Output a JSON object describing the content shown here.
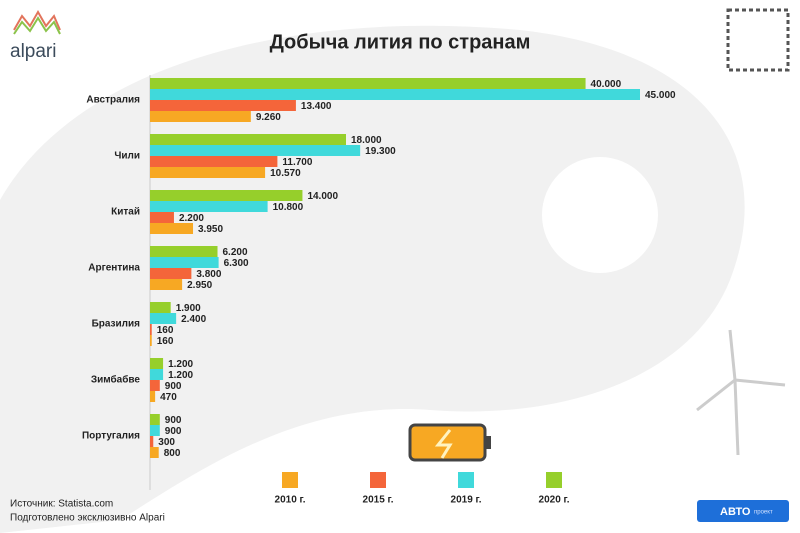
{
  "chart_data": {
    "type": "bar",
    "orientation": "horizontal",
    "title": "Добыча лития по странам",
    "brand": "alpari",
    "source": "Источник: Statista.com",
    "credit": "Подготовлено эксклюзивно Alpari",
    "badge": "АВТО",
    "badge_note": "проект",
    "categories": [
      "Австралия",
      "Чили",
      "Китай",
      "Аргентина",
      "Бразилия",
      "Зимбабве",
      "Португалия"
    ],
    "series": [
      {
        "name": "2010 г.",
        "color": "#f7a823",
        "values": [
          9260,
          10570,
          3950,
          2950,
          160,
          470,
          800
        ],
        "value_labels": [
          "9.260",
          "10.570",
          "3.950",
          "2.950",
          "160",
          "470",
          "800"
        ]
      },
      {
        "name": "2015 г.",
        "color": "#f4653a",
        "values": [
          13400,
          11700,
          2200,
          3800,
          160,
          900,
          300
        ],
        "value_labels": [
          "13.400",
          "11.700",
          "2.200",
          "3.800",
          "160",
          "900",
          "300"
        ]
      },
      {
        "name": "2019 г.",
        "color": "#40d9db",
        "values": [
          45000,
          19300,
          10800,
          6300,
          2400,
          1200,
          900
        ],
        "value_labels": [
          "45.000",
          "19.300",
          "10.800",
          "6.300",
          "2.400",
          "1.200",
          "900"
        ]
      },
      {
        "name": "2020 г.",
        "color": "#96cf2b",
        "values": [
          40000,
          18000,
          14000,
          6200,
          1900,
          1200,
          900
        ],
        "value_labels": [
          "40.000",
          "18.000",
          "14.000",
          "6.200",
          "1.900",
          "1.200",
          "900"
        ]
      }
    ]
  }
}
